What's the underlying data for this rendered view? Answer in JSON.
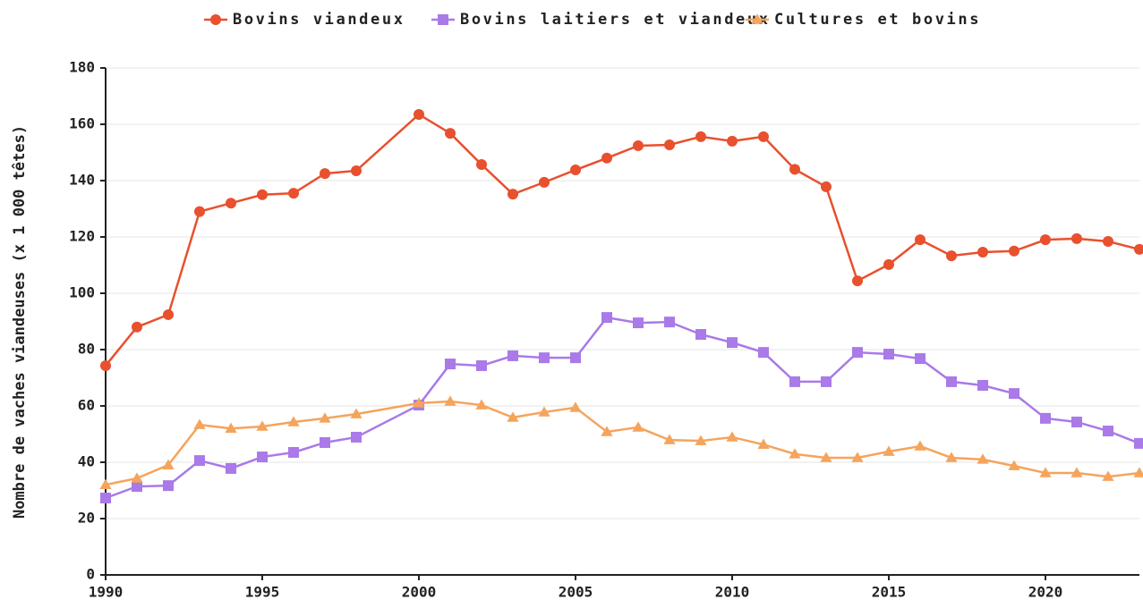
{
  "chart_data": {
    "type": "line",
    "y_label": "Nombre de vaches viandeuses (x 1 000 têtes)",
    "x": [
      1990,
      1991,
      1992,
      1993,
      1994,
      1995,
      1996,
      1997,
      1998,
      2000,
      2001,
      2002,
      2003,
      2004,
      2005,
      2006,
      2007,
      2008,
      2009,
      2010,
      2011,
      2012,
      2013,
      2014,
      2015,
      2016,
      2017,
      2018,
      2019,
      2020,
      2021,
      2022,
      2023
    ],
    "series": [
      {
        "name": "Bovins viandeux",
        "color": "#e8502e",
        "marker": "circle",
        "values": [
          74.3,
          88,
          92.4,
          129,
          132,
          135,
          135.5,
          142.5,
          143.5,
          163.5,
          156.8,
          145.7,
          135.2,
          139.4,
          143.8,
          148,
          152.4,
          152.7,
          155.6,
          154,
          155.6,
          144,
          137.8,
          104.4,
          110.2,
          119,
          113.3,
          114.6,
          115,
          119,
          119.4,
          118.4,
          115.6
        ]
      },
      {
        "name": "Bovins laitiers et viandeux",
        "color": "#a97ae8",
        "marker": "square",
        "values": [
          27.3,
          31.4,
          31.7,
          40.6,
          37.8,
          41.9,
          43.5,
          47,
          48.9,
          60.3,
          74.9,
          74.3,
          77.8,
          77.1,
          77.1,
          91.4,
          89.5,
          89.8,
          85.4,
          82.5,
          79,
          68.6,
          68.6,
          79,
          78.4,
          76.8,
          68.6,
          67.3,
          64.4,
          55.6,
          54.3,
          51.1,
          46.7
        ]
      },
      {
        "name": "Cultures et bovins",
        "color": "#f5a45c",
        "marker": "triangle",
        "values": [
          32,
          34.3,
          39,
          53.3,
          52,
          52.7,
          54.3,
          55.6,
          57.1,
          61,
          61.6,
          60.3,
          55.9,
          57.8,
          59.4,
          50.8,
          52.4,
          47.9,
          47.6,
          48.9,
          46.3,
          42.9,
          41.6,
          41.6,
          43.8,
          45.7,
          41.6,
          41,
          38.7,
          36.2,
          36.2,
          34.9,
          36.2
        ]
      }
    ],
    "xlim": [
      1990,
      2023
    ],
    "xticks": [
      1990,
      1995,
      2000,
      2005,
      2010,
      2015,
      2020
    ],
    "ylim": [
      0,
      180
    ],
    "yticks": [
      0,
      20,
      40,
      60,
      80,
      100,
      120,
      140,
      160,
      180
    ],
    "grid": true,
    "legend": "top"
  }
}
